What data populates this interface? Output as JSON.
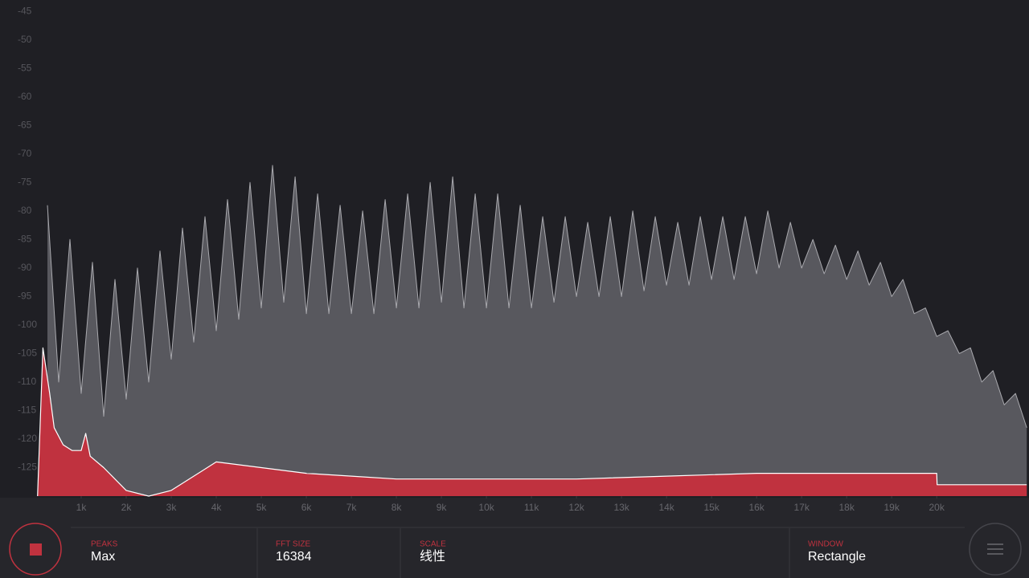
{
  "chart_data": {
    "type": "area",
    "xlim": [
      0,
      22050
    ],
    "ylim": [
      -130,
      -43
    ],
    "yticks": [
      -45,
      -50,
      -55,
      -60,
      -65,
      -70,
      -75,
      -80,
      -85,
      -90,
      -95,
      -100,
      -105,
      -110,
      -115,
      -120,
      -125
    ],
    "xticks": [
      {
        "value": 1000,
        "label": "1k"
      },
      {
        "value": 2000,
        "label": "2k"
      },
      {
        "value": 3000,
        "label": "3k"
      },
      {
        "value": 4000,
        "label": "4k"
      },
      {
        "value": 5000,
        "label": "5k"
      },
      {
        "value": 6000,
        "label": "6k"
      },
      {
        "value": 7000,
        "label": "7k"
      },
      {
        "value": 8000,
        "label": "8k"
      },
      {
        "value": 9000,
        "label": "9k"
      },
      {
        "value": 10000,
        "label": "10k"
      },
      {
        "value": 11000,
        "label": "11k"
      },
      {
        "value": 12000,
        "label": "12k"
      },
      {
        "value": 13000,
        "label": "13k"
      },
      {
        "value": 14000,
        "label": "14k"
      },
      {
        "value": 15000,
        "label": "15k"
      },
      {
        "value": 16000,
        "label": "16k"
      },
      {
        "value": 17000,
        "label": "17k"
      },
      {
        "value": 18000,
        "label": "18k"
      },
      {
        "value": 19000,
        "label": "19k"
      },
      {
        "value": 20000,
        "label": "20k"
      }
    ],
    "series": [
      {
        "color": "#58585e",
        "x": [
          250,
          500,
          750,
          1000,
          1250,
          1500,
          1750,
          2000,
          2250,
          2500,
          2750,
          3000,
          3250,
          3500,
          3750,
          4000,
          4250,
          4500,
          4750,
          5000,
          5250,
          5500,
          5750,
          6000,
          6250,
          6500,
          6750,
          7000,
          7250,
          7500,
          7750,
          8000,
          8250,
          8500,
          8750,
          9000,
          9250,
          9500,
          9750,
          10000,
          10250,
          10500,
          10750,
          11000,
          11250,
          11500,
          11750,
          12000,
          12250,
          12500,
          12750,
          13000,
          13250,
          13500,
          13750,
          14000,
          14250,
          14500,
          14750,
          15000,
          15250,
          15500,
          15750,
          16000,
          16250,
          16500,
          16750,
          17000,
          17250,
          17500,
          17750,
          18000,
          18250,
          18500,
          18750,
          19000,
          19250,
          19500,
          19750,
          20000,
          20250,
          20500,
          20750,
          21000,
          21250,
          21500,
          21750,
          22000
        ],
        "values": [
          -79,
          -110,
          -85,
          -112,
          -89,
          -116,
          -92,
          -113,
          -90,
          -110,
          -87,
          -106,
          -83,
          -103,
          -81,
          -101,
          -78,
          -99,
          -75,
          -97,
          -72,
          -96,
          -74,
          -98,
          -77,
          -98,
          -79,
          -98,
          -80,
          -98,
          -78,
          -97,
          -77,
          -97,
          -75,
          -96,
          -74,
          -97,
          -77,
          -97,
          -77,
          -97,
          -79,
          -97,
          -81,
          -96,
          -81,
          -95,
          -82,
          -95,
          -81,
          -95,
          -80,
          -94,
          -81,
          -93,
          -82,
          -93,
          -81,
          -92,
          -81,
          -92,
          -81,
          -91,
          -80,
          -90,
          -82,
          -90,
          -85,
          -91,
          -86,
          -92,
          -87,
          -93,
          -89,
          -95,
          -92,
          -98,
          -97,
          -102,
          -101,
          -105,
          -104,
          -110,
          -108,
          -114,
          -112,
          -118
        ]
      },
      {
        "color": "#c0323f",
        "x": [
          30,
          150,
          300,
          400,
          600,
          800,
          1000,
          1100,
          1200,
          1500,
          2000,
          2500,
          3000,
          4000,
          5000,
          6000,
          7000,
          8000,
          10000,
          12000,
          14000,
          16000,
          18000,
          20000,
          20010,
          22000
        ],
        "values": [
          -130,
          -104,
          -112,
          -118,
          -121,
          -122,
          -122,
          -119,
          -123,
          -125,
          -129,
          -130,
          -129,
          -124,
          -125,
          -126,
          -126.5,
          -127,
          -127,
          -127,
          -126.5,
          -126,
          -126,
          -126,
          -128,
          -128
        ]
      }
    ]
  },
  "controls": [
    {
      "label": "PEAKS",
      "value": "Max"
    },
    {
      "label": "FFT SIZE",
      "value": 16384
    },
    {
      "label": "SCALE",
      "value": "线性"
    },
    {
      "label": "WINDOW",
      "value": "Rectangle"
    }
  ]
}
